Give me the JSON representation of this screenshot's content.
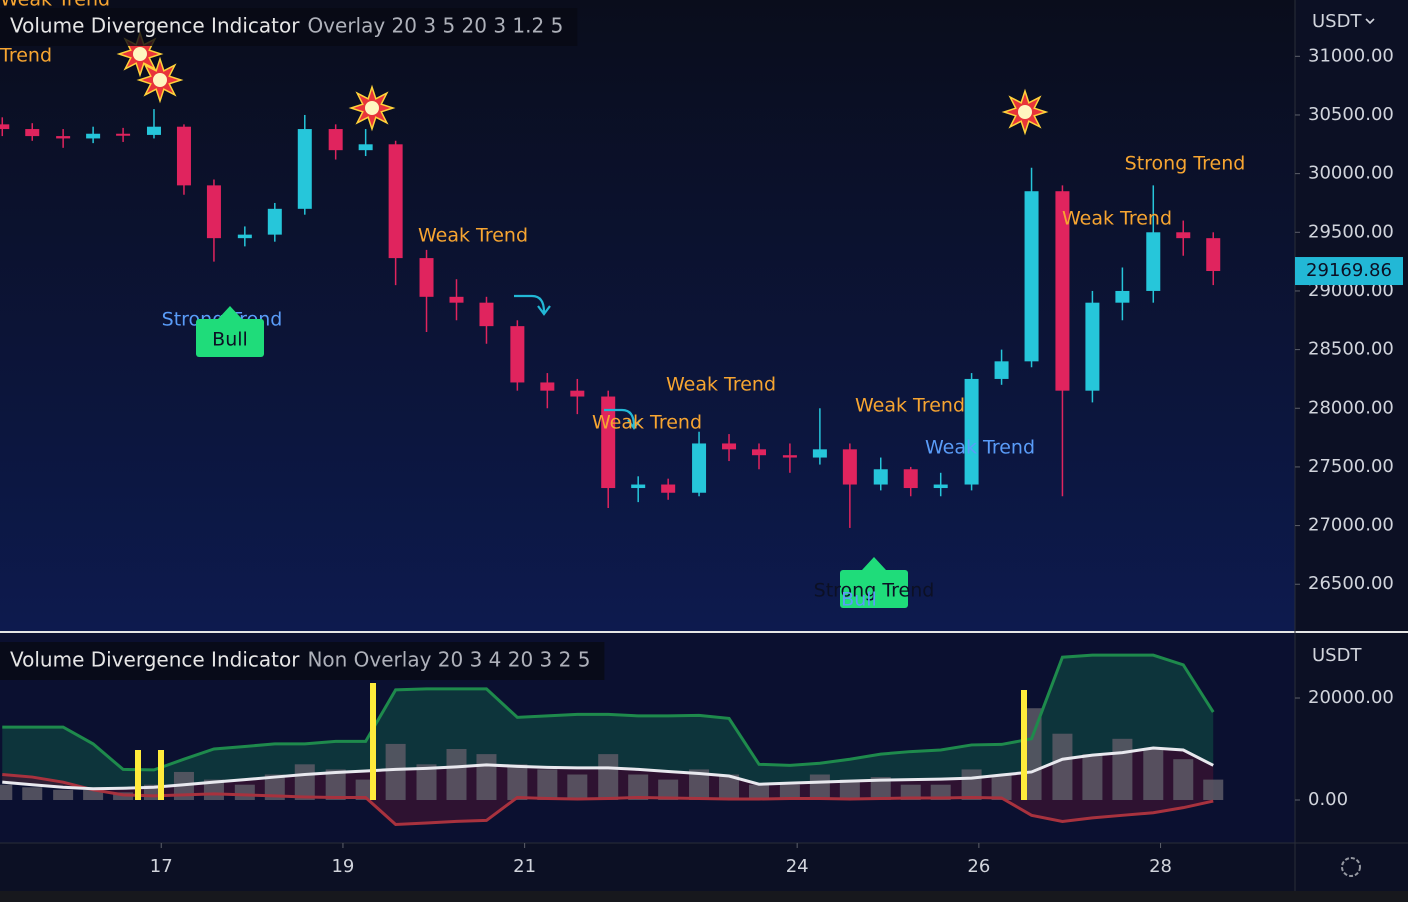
{
  "chart_data": [
    {
      "type": "candlestick",
      "title": "Volume Divergence Indicator",
      "subtitle": "Overlay 20 3 5 20 3 1.2 5",
      "currency": "USDT",
      "x": [
        15.25,
        15.58,
        15.92,
        16.25,
        16.58,
        16.92,
        17.25,
        17.58,
        17.92,
        18.25,
        18.58,
        18.92,
        19.25,
        19.58,
        19.92,
        20.25,
        20.58,
        20.92,
        21.25,
        21.58,
        21.92,
        22.25,
        22.58,
        22.92,
        23.25,
        23.58,
        23.92,
        24.25,
        24.58,
        24.92,
        25.25,
        25.58,
        25.92,
        26.25,
        26.58,
        26.92,
        27.25,
        27.58,
        27.92,
        28.25,
        28.58
      ],
      "open": [
        30420,
        30380,
        30320,
        30300,
        30340,
        30330,
        30400,
        29900,
        29450,
        29480,
        29700,
        30380,
        30200,
        30250,
        29280,
        28950,
        28900,
        28700,
        28220,
        28150,
        28100,
        27320,
        27350,
        27280,
        27700,
        27650,
        27600,
        27580,
        27650,
        27350,
        27480,
        27320,
        27350,
        28250,
        28400,
        29850,
        28150,
        28900,
        29000,
        29500,
        29450
      ],
      "high": [
        30480,
        30430,
        30380,
        30400,
        30390,
        30550,
        30420,
        29950,
        29550,
        29750,
        30500,
        30420,
        30380,
        30280,
        29350,
        29100,
        28950,
        28750,
        28300,
        28250,
        28150,
        27420,
        27400,
        27800,
        27780,
        27700,
        27700,
        28000,
        27700,
        27580,
        27500,
        27450,
        28300,
        28500,
        30050,
        29900,
        29000,
        29200,
        29900,
        29600,
        29500
      ],
      "low": [
        30320,
        30280,
        30220,
        30260,
        30270,
        30300,
        29820,
        29250,
        29380,
        29420,
        29650,
        30120,
        30150,
        29050,
        28650,
        28750,
        28550,
        28150,
        28000,
        27950,
        27150,
        27200,
        27220,
        27250,
        27550,
        27480,
        27450,
        27520,
        26980,
        27300,
        27250,
        27250,
        27300,
        28200,
        28350,
        27250,
        28050,
        28750,
        28900,
        29300,
        29050
      ],
      "close": [
        30380,
        30320,
        30300,
        30340,
        30330,
        30400,
        29900,
        29450,
        29480,
        29700,
        30380,
        30200,
        30250,
        29280,
        28950,
        28900,
        28700,
        28220,
        28150,
        28100,
        27320,
        27350,
        27280,
        27700,
        27650,
        27600,
        27580,
        27650,
        27350,
        27480,
        27320,
        27350,
        28250,
        28400,
        29850,
        28150,
        28900,
        29000,
        29500,
        29450,
        29169.86
      ],
      "up_color": "#26c6da",
      "down_color": "#e0245e",
      "xlim": [
        15.225,
        29.48
      ],
      "xticks": [
        17,
        19,
        21,
        24,
        26,
        28
      ],
      "ylim": [
        26110,
        31480
      ],
      "yticks": [
        {
          "value": 26500,
          "label": "26500.00"
        },
        {
          "value": 27000,
          "label": "27000.00"
        },
        {
          "value": 27500,
          "label": "27500.00"
        },
        {
          "value": 28000,
          "label": "28000.00"
        },
        {
          "value": 28500,
          "label": "28500.00"
        },
        {
          "value": 29000,
          "label": "29000.00"
        },
        {
          "value": 29500,
          "label": "29500.00"
        },
        {
          "value": 30000,
          "label": "30000.00"
        },
        {
          "value": 30500,
          "label": "30500.00"
        },
        {
          "value": 31000,
          "label": "31000.00"
        }
      ],
      "grid": false,
      "annotations": [
        "Trend",
        "Weak Trend",
        "Strong Trend",
        "Bull",
        "Weak Trend",
        "Weak Trend",
        "Weak Trend",
        "Weak Trend",
        "Strong Trend",
        "Bull",
        "Strong Trend",
        "Weak Trend",
        "Weak Trend"
      ]
    },
    {
      "type": "bands",
      "title": "Volume Divergence Indicator",
      "subtitle": "Non Overlay 20 3 4 20 3 2 5",
      "currency": "USDT",
      "x": [
        15.25,
        15.58,
        15.92,
        16.25,
        16.58,
        16.92,
        17.25,
        17.58,
        17.92,
        18.25,
        18.58,
        18.92,
        19.25,
        19.58,
        19.92,
        20.25,
        20.58,
        20.92,
        21.25,
        21.58,
        21.92,
        22.25,
        22.58,
        22.92,
        23.25,
        23.58,
        23.92,
        24.25,
        24.58,
        24.92,
        25.25,
        25.58,
        25.92,
        26.25,
        26.58,
        26.92,
        27.25,
        27.58,
        27.92,
        28.25,
        28.58
      ],
      "volume": {
        "color": "#5d5a66",
        "values": [
          3000,
          2500,
          2000,
          2000,
          1500,
          3000,
          5500,
          4000,
          3000,
          5000,
          7000,
          6000,
          4000,
          11000,
          7000,
          10000,
          9000,
          7000,
          6000,
          5000,
          9000,
          5000,
          4000,
          6000,
          5000,
          3000,
          3000,
          5000,
          4000,
          4500,
          3000,
          3000,
          6000,
          5000,
          18000,
          13000,
          9000,
          12000,
          10000,
          8000,
          4000
        ]
      },
      "series": [
        {
          "color": "#1e8a4c",
          "values": [
            14300,
            14300,
            14300,
            11000,
            6000,
            5900,
            8000,
            10000,
            10500,
            11000,
            11000,
            11500,
            11500,
            21600,
            21800,
            21800,
            21800,
            16200,
            16500,
            16800,
            16800,
            16500,
            16500,
            16600,
            16000,
            7000,
            6800,
            7200,
            8000,
            9000,
            9500,
            9800,
            10800,
            10900,
            12000,
            28000,
            28400,
            28400,
            28400,
            26500,
            17250
          ]
        },
        {
          "color": "#a8323e",
          "values": [
            5000,
            4500,
            3500,
            2000,
            1000,
            800,
            1000,
            1200,
            1000,
            800,
            600,
            500,
            500,
            -4800,
            -4500,
            -4200,
            -4000,
            500,
            300,
            200,
            300,
            500,
            400,
            300,
            200,
            200,
            300,
            300,
            200,
            300,
            400,
            400,
            500,
            400,
            -3000,
            -4200,
            -3500,
            -3000,
            -2500,
            -1500,
            -200
          ]
        },
        {
          "color": "#e8e8ee",
          "values": [
            3500,
            3000,
            2500,
            2200,
            2300,
            2500,
            3000,
            3500,
            4000,
            4500,
            5000,
            5400,
            5700,
            6000,
            6200,
            6500,
            6900,
            6600,
            6400,
            6300,
            6300,
            6000,
            5600,
            5200,
            4700,
            3100,
            3300,
            3500,
            3700,
            3900,
            4000,
            4100,
            4300,
            4900,
            5500,
            8000,
            8800,
            9300,
            10200,
            9800,
            6800
          ]
        }
      ],
      "xlim": [
        15.225,
        29.48
      ],
      "ylim": [
        -8430,
        32750
      ],
      "yticks": [
        {
          "value": 0,
          "label": "0.00"
        },
        {
          "value": 20000,
          "label": "20000.00"
        }
      ]
    }
  ]
}
